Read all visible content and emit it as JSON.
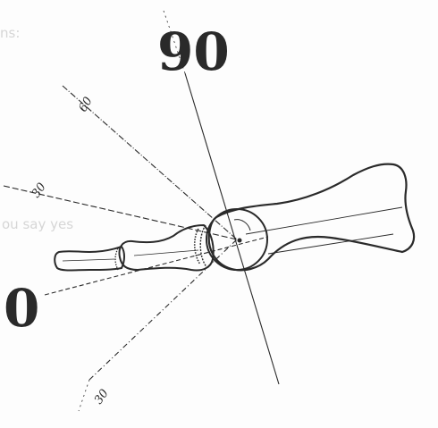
{
  "diagram": {
    "labels": {
      "top": "90",
      "left": "0",
      "ray_upper": "60",
      "ray_middle": "30",
      "ray_lower": "30"
    },
    "ghost_text": {
      "upper_left": "ns:",
      "middle_left": "ou say yes"
    },
    "colors": {
      "ink": "#2a2a2a",
      "paper": "#fdfdfd",
      "ghost": "#d6d6d6"
    }
  }
}
